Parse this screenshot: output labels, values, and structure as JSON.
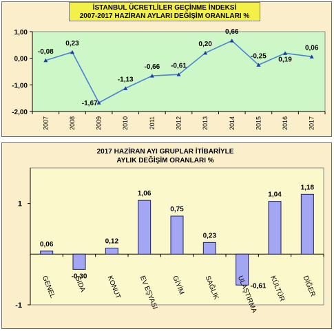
{
  "colors": {
    "panel_bg": "#fbeeca",
    "plot_bg_top": "#cdf7c6",
    "plot_bg_bottom": "#fbf9cc",
    "title_bg": "#f3f04a",
    "line_color": "#4a82d8",
    "bar_fill": "#a3a6f2",
    "bar_stroke": "#1f1f5c"
  },
  "chart_data": [
    {
      "type": "line",
      "title": "İSTANBUL ÜCRETLİLER GEÇİNME İNDEKSİ",
      "subtitle": "2007-2017 HAZİRAN AYLARI DEĞİŞİM ORANLARI %",
      "categories": [
        "2007",
        "2008",
        "2009",
        "2010",
        "2011",
        "2012",
        "2013",
        "2014",
        "2015",
        "2016",
        "2017"
      ],
      "values": [
        -0.08,
        0.23,
        -1.67,
        -1.13,
        -0.66,
        -0.61,
        0.2,
        0.66,
        -0.25,
        0.19,
        0.06
      ],
      "data_labels": [
        "-0,08",
        "0,23",
        "-1,67",
        "-1,13",
        "-0,66",
        "-0,61",
        "0,20",
        "0,66",
        "-0,25",
        "0,19",
        "0,06"
      ],
      "ylim": [
        -2,
        1
      ],
      "yticks": [
        1,
        0,
        -1,
        -2
      ],
      "ytick_labels": [
        "1,00",
        "0,00",
        "-1,00",
        "-2,00"
      ],
      "grid": false,
      "xlabel": "",
      "ylabel": ""
    },
    {
      "type": "bar",
      "title": "2017 HAZİRAN AYI GRUPLAR İTİBARİYLE",
      "subtitle": "AYLIK DEĞİŞİM ORANLARI %",
      "categories": [
        "GENEL",
        "GIDA",
        "KONUT",
        "EV EŞYASI",
        "GİYİM",
        "SAĞLIK",
        "ULAŞTIRMA",
        "KÜLTÜR",
        "DİĞER"
      ],
      "values": [
        0.06,
        -0.3,
        0.12,
        1.06,
        0.75,
        0.23,
        -0.61,
        1.04,
        1.18
      ],
      "data_labels": [
        "0,06",
        "-0,30",
        "0,12",
        "1,06",
        "0,75",
        "0,23",
        "-0,61",
        "1,04",
        "1,18"
      ],
      "ylim": [
        -1,
        1.7
      ],
      "yticks": [
        1,
        -1
      ],
      "ytick_labels": [
        "1",
        "-1"
      ],
      "grid": false,
      "xlabel": "",
      "ylabel": ""
    }
  ]
}
